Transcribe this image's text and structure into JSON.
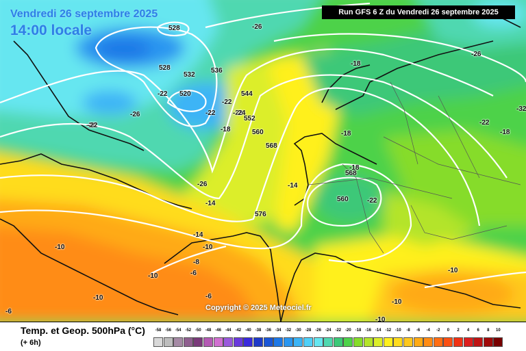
{
  "header": {
    "date_line": "Vendredi 26 septembre 2025",
    "time_line": "14:00 locale",
    "run_line": "Run GFS 6 Z du Vendredi 26 septembre 2025"
  },
  "copyright": "Copyright © 2025 Meteociel.fr",
  "footer": {
    "title": "Temp. et Geop. 500hPa (°C)",
    "subtitle": "(+ 6h)"
  },
  "legend": {
    "values": [
      "-58",
      "-56",
      "-54",
      "-52",
      "-50",
      "-48",
      "-46",
      "-44",
      "-42",
      "-40",
      "-38",
      "-36",
      "-34",
      "-32",
      "-30",
      "-28",
      "-26",
      "-24",
      "-22",
      "-20",
      "-18",
      "-16",
      "-14",
      "-12",
      "-10",
      "-8",
      "-6",
      "-4",
      "-2",
      "0",
      "2",
      "4",
      "6",
      "8",
      "10"
    ],
    "colors": [
      "#d9d9d9",
      "#bdbdbd",
      "#a58aa5",
      "#8f5f8f",
      "#7a3a7a",
      "#b45ab4",
      "#d070d0",
      "#9a5adc",
      "#6a3adc",
      "#3a2adc",
      "#1e3ac8",
      "#1a56d6",
      "#1e78e6",
      "#2a96f0",
      "#3cb4f6",
      "#50d0f8",
      "#66e6f0",
      "#50d8b0",
      "#3cc878",
      "#4ed24a",
      "#86dc2a",
      "#b4e42a",
      "#dcee2a",
      "#fff01e",
      "#ffdc1e",
      "#ffc81e",
      "#ffaa14",
      "#ff8c14",
      "#ff6e14",
      "#fa5014",
      "#f03214",
      "#dc1e1e",
      "#be1414",
      "#a00a0a",
      "#780000"
    ]
  },
  "map_labels": {
    "contours": [
      "528",
      "520",
      "536",
      "528",
      "532",
      "544",
      "552",
      "560",
      "568",
      "568",
      "560",
      "576"
    ],
    "temps": [
      "-26",
      "-22",
      "-26",
      "-26",
      "-22",
      "-22",
      "-22",
      "-24",
      "-18",
      "-18",
      "-18",
      "-26",
      "-14",
      "-14",
      "-18",
      "-22",
      "-22",
      "-18",
      "-26",
      "-22",
      "-14",
      "-10",
      "-10",
      "-10",
      "-10",
      "-10",
      "-8",
      "-6",
      "-6",
      "-6",
      "-10",
      "-10",
      "-14",
      "-10",
      "-32"
    ]
  }
}
